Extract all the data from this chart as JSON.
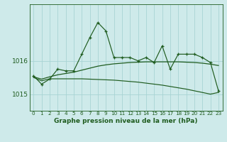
{
  "title": "Graphe pression niveau de la mer (hPa)",
  "bg_color": "#ceeaea",
  "line_color": "#1f5c1f",
  "grid_color": "#a8d4d4",
  "x_labels": [
    "0",
    "1",
    "2",
    "3",
    "4",
    "5",
    "6",
    "7",
    "8",
    "9",
    "10",
    "11",
    "12",
    "13",
    "14",
    "15",
    "16",
    "17",
    "18",
    "19",
    "20",
    "21",
    "22",
    "23"
  ],
  "ylim": [
    1014.5,
    1017.7
  ],
  "yticks": [
    1015,
    1016
  ],
  "obs": [
    1015.55,
    1015.3,
    1015.45,
    1015.75,
    1015.7,
    1015.7,
    1016.2,
    1016.7,
    1017.15,
    1016.9,
    1016.1,
    1016.1,
    1016.1,
    1016.0,
    1016.1,
    1015.95,
    1016.45,
    1015.75,
    1016.2,
    1016.2,
    1016.2,
    1016.1,
    1015.95,
    1015.1
  ],
  "mid_rise": [
    1015.52,
    1015.45,
    1015.52,
    1015.58,
    1015.62,
    1015.66,
    1015.72,
    1015.78,
    1015.84,
    1015.88,
    1015.91,
    1015.93,
    1015.95,
    1015.96,
    1015.97,
    1015.97,
    1015.97,
    1015.97,
    1015.97,
    1015.96,
    1015.95,
    1015.93,
    1015.9,
    1015.86
  ],
  "bot_decline": [
    1015.5,
    1015.4,
    1015.46,
    1015.46,
    1015.46,
    1015.46,
    1015.46,
    1015.45,
    1015.44,
    1015.43,
    1015.42,
    1015.4,
    1015.38,
    1015.36,
    1015.33,
    1015.3,
    1015.27,
    1015.23,
    1015.19,
    1015.15,
    1015.1,
    1015.05,
    1015.0,
    1015.05
  ]
}
